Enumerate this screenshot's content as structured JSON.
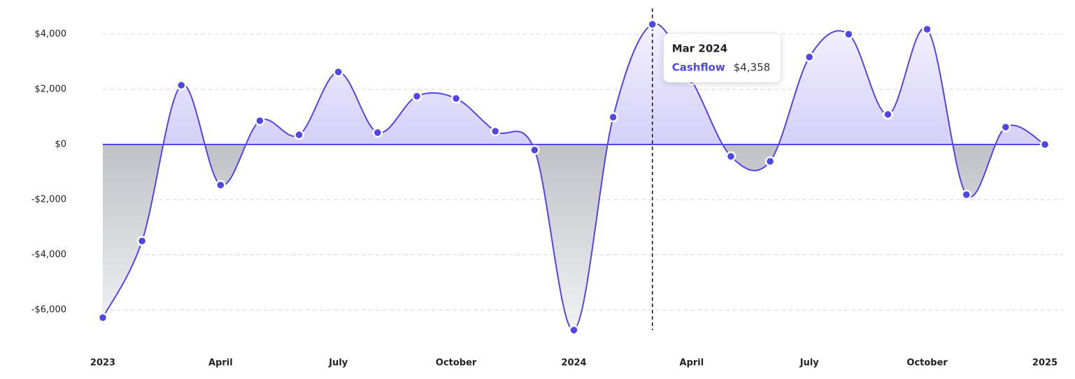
{
  "chart_data": {
    "type": "area",
    "categories": [
      "2023",
      null,
      null,
      "April",
      null,
      null,
      "July",
      null,
      null,
      "October",
      null,
      null,
      "2024",
      null,
      null,
      "April",
      null,
      null,
      "July",
      null,
      null,
      "October",
      null,
      null,
      "2025"
    ],
    "series": [
      {
        "name": "Cashflow",
        "color": "#4f46e5",
        "values": [
          -6280,
          -3500,
          2150,
          -1470,
          860,
          350,
          2630,
          430,
          1750,
          1670,
          480,
          -200,
          -6730,
          990,
          4358,
          2330,
          -430,
          -610,
          3170,
          4000,
          1090,
          4180,
          -1820,
          630,
          0
        ]
      }
    ],
    "ylim": [
      -7000,
      5000
    ],
    "yticks": [
      {
        "value": -6000,
        "label": "-$6,000"
      },
      {
        "value": -4000,
        "label": "-$4,000"
      },
      {
        "value": -2000,
        "label": "-$2,000"
      },
      {
        "value": 0,
        "label": "$0"
      },
      {
        "value": 2000,
        "label": "$2,000"
      },
      {
        "value": 4000,
        "label": "$4,000"
      }
    ],
    "grid": true,
    "tooltip": {
      "label": "Mar 2024",
      "value": 4358,
      "value_label": "$4,358"
    }
  }
}
